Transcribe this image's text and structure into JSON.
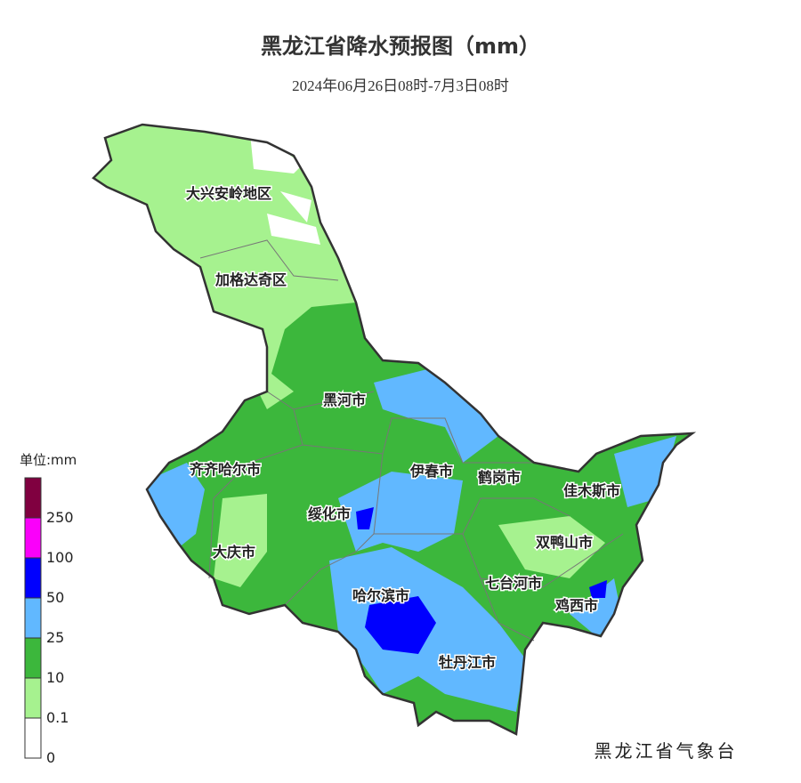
{
  "title": "黑龙江省降水预报图（mm）",
  "subtitle": "2024年06月26日08时-7月3日08时",
  "legend": {
    "title": "单位:mm",
    "labels": [
      0,
      0.1,
      10,
      25,
      50,
      100,
      250
    ],
    "colors": [
      "#ffffff",
      "#a6f28f",
      "#3cb73c",
      "#61b8ff",
      "#0000fe",
      "#fa00fa",
      "#800040"
    ]
  },
  "regions": [
    "大兴安岭地区",
    "加格达奇区",
    "黑河市",
    "齐齐哈尔市",
    "伊春市",
    "鹤岗市",
    "佳木斯市",
    "绥化市",
    "大庆市",
    "双鸭山市",
    "七台河市",
    "哈尔滨市",
    "鸡西市",
    "牡丹江市"
  ],
  "credit": "黑龙江省气象台"
}
